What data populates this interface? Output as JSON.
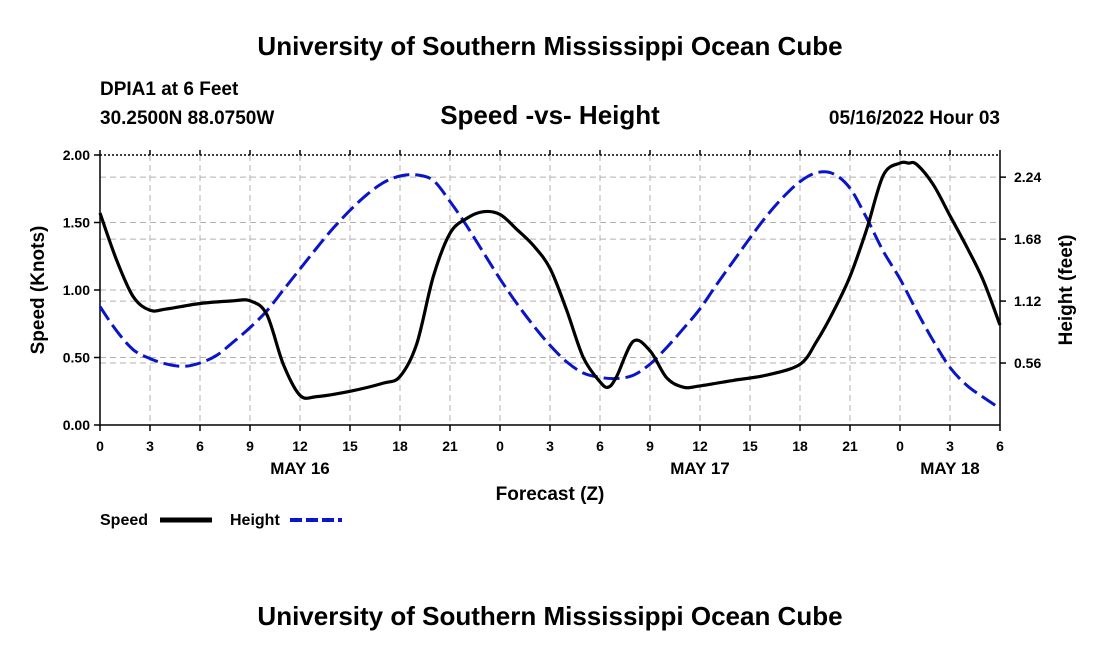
{
  "header": {
    "title": "University of Southern Mississippi Ocean Cube",
    "station": "DPIA1 at 6 Feet",
    "coords": "30.2500N  88.0750W",
    "timestamp": "05/16/2022 Hour 03",
    "footer_title": "University of Southern Mississippi Ocean Cube"
  },
  "chart_data": {
    "type": "line",
    "title": "Speed -vs- Height",
    "xlabel": "Forecast (Z)",
    "ylabel": "Speed (Knots)",
    "y2label": "Height (feet)",
    "xlim": [
      0,
      54
    ],
    "ylim": [
      0,
      2.0
    ],
    "y2lim": [
      0,
      2.44
    ],
    "x_ticks": [
      0,
      3,
      6,
      9,
      12,
      15,
      18,
      21,
      24,
      27,
      30,
      33,
      36,
      39,
      42,
      45,
      48,
      51,
      54
    ],
    "x_tick_labels": [
      "0",
      "3",
      "6",
      "9",
      "12",
      "15",
      "18",
      "21",
      "0",
      "3",
      "6",
      "9",
      "12",
      "15",
      "18",
      "21",
      "0",
      "3",
      "6"
    ],
    "y_ticks": [
      0,
      0.5,
      1.0,
      1.5,
      2.0
    ],
    "y_tick_labels": [
      "0.00",
      "0.50",
      "1.00",
      "1.50",
      "2.00"
    ],
    "y2_ticks": [
      0.56,
      1.12,
      1.68,
      2.24
    ],
    "y2_tick_labels": [
      "0.56",
      "1.12",
      "1.68",
      "2.24"
    ],
    "date_labels": [
      {
        "x": 12,
        "label": "MAY 16"
      },
      {
        "x": 36,
        "label": "MAY 17"
      },
      {
        "x": 51,
        "label": "MAY 18"
      }
    ],
    "grid": true,
    "series": [
      {
        "name": "Speed",
        "axis": "left",
        "color": "#000000",
        "style": "solid",
        "x": [
          0,
          1,
          2,
          3,
          4,
          6,
          8,
          9,
          10,
          11,
          12,
          13,
          15,
          17,
          18,
          19,
          20,
          21,
          22,
          23,
          24,
          25,
          26,
          27,
          28,
          29,
          30,
          30.5,
          31,
          32,
          33,
          34,
          35,
          36,
          38,
          40,
          42,
          43,
          44,
          45,
          46,
          47,
          48,
          48.5,
          49,
          50,
          51,
          52,
          53,
          54
        ],
        "values": [
          1.57,
          1.22,
          0.95,
          0.85,
          0.86,
          0.9,
          0.92,
          0.92,
          0.82,
          0.45,
          0.22,
          0.21,
          0.25,
          0.31,
          0.36,
          0.6,
          1.1,
          1.42,
          1.53,
          1.58,
          1.56,
          1.45,
          1.33,
          1.16,
          0.85,
          0.5,
          0.32,
          0.28,
          0.36,
          0.62,
          0.55,
          0.35,
          0.28,
          0.29,
          0.33,
          0.37,
          0.45,
          0.62,
          0.84,
          1.1,
          1.45,
          1.85,
          1.94,
          1.94,
          1.93,
          1.78,
          1.55,
          1.32,
          1.07,
          0.74
        ]
      },
      {
        "name": "Height",
        "axis": "right",
        "color": "#0a14c8",
        "style": "dashed",
        "x": [
          0,
          1,
          2,
          3,
          4,
          5,
          6,
          7,
          8,
          9,
          10,
          11,
          12,
          13,
          14,
          15,
          16,
          17,
          18,
          19,
          20,
          21,
          22,
          23,
          24,
          25,
          26,
          27,
          28,
          29,
          30,
          31,
          32,
          33,
          34,
          35,
          36,
          37,
          38,
          39,
          40,
          41,
          42,
          43,
          44,
          45,
          46,
          47,
          48,
          49,
          50,
          51,
          52,
          53,
          54
        ],
        "values": [
          1.07,
          0.85,
          0.68,
          0.6,
          0.55,
          0.53,
          0.56,
          0.63,
          0.75,
          0.88,
          1.03,
          1.22,
          1.41,
          1.6,
          1.78,
          1.94,
          2.08,
          2.19,
          2.25,
          2.26,
          2.21,
          2.02,
          1.8,
          1.56,
          1.32,
          1.1,
          0.9,
          0.72,
          0.57,
          0.47,
          0.43,
          0.42,
          0.45,
          0.55,
          0.7,
          0.87,
          1.05,
          1.27,
          1.48,
          1.69,
          1.89,
          2.06,
          2.2,
          2.28,
          2.27,
          2.14,
          1.87,
          1.57,
          1.32,
          1.03,
          0.76,
          0.52,
          0.36,
          0.25,
          0.15
        ]
      }
    ]
  },
  "legend": {
    "speed_label": "Speed",
    "height_label": "Height"
  }
}
